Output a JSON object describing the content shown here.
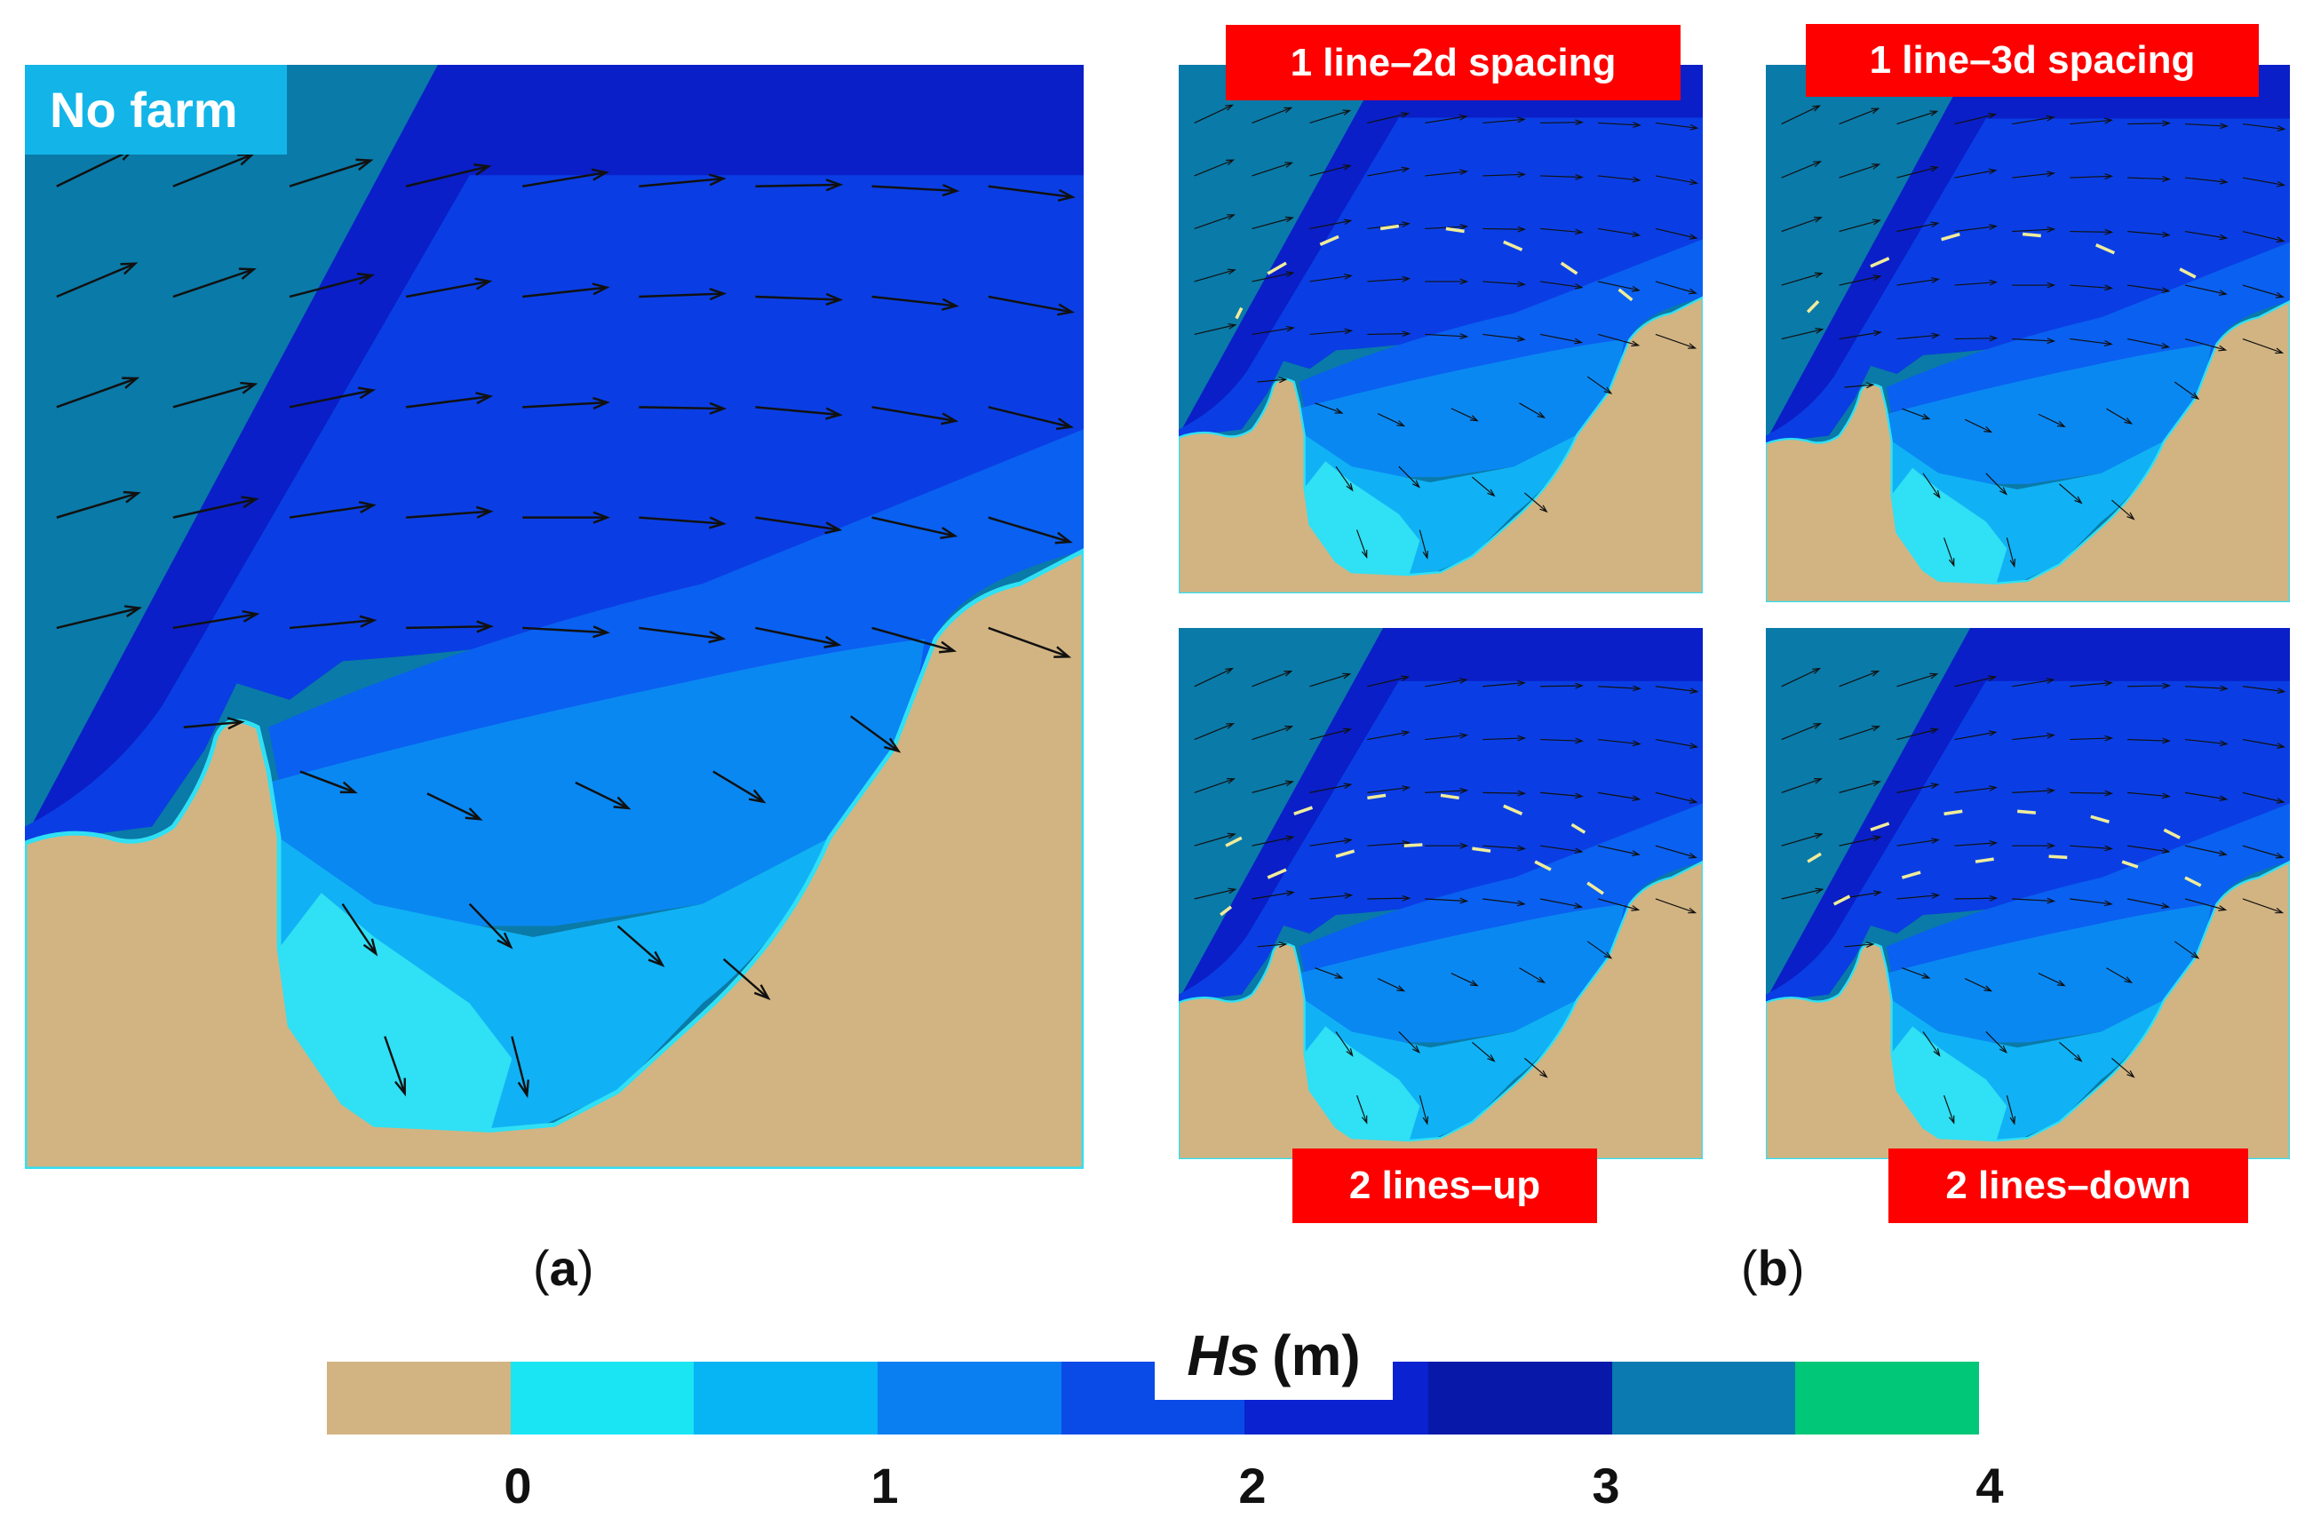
{
  "panels": {
    "a_label": "No farm",
    "b_top_left_label": "1 line–2d spacing",
    "b_top_right_label": "1 line–3d spacing",
    "b_bottom_left_label": "2 lines–up",
    "b_bottom_right_label": "2 lines–down"
  },
  "sublabels": {
    "a": "a",
    "b": "b"
  },
  "colorbar": {
    "title_var": "Hs",
    "title_unit": "(m)",
    "ticks": [
      "0",
      "1",
      "2",
      "3",
      "4"
    ],
    "colors": [
      "#d2b482",
      "#19e6f2",
      "#08b5f4",
      "#0a7ff2",
      "#0a4be8",
      "#0a22d0",
      "#0818a8",
      "#0a7ab0",
      "#00c878"
    ]
  },
  "map_colors": {
    "land": "#d2b482",
    "offshore": "#0a7aa8",
    "band_3": "#0a1fc7",
    "band_2_5": "#0a3ee4",
    "band_2": "#0a60f0",
    "band_1_5": "#0a88f2",
    "band_1": "#10b2f5",
    "band_0_5": "#30e0f4",
    "farm": "#f0ec9a"
  }
}
